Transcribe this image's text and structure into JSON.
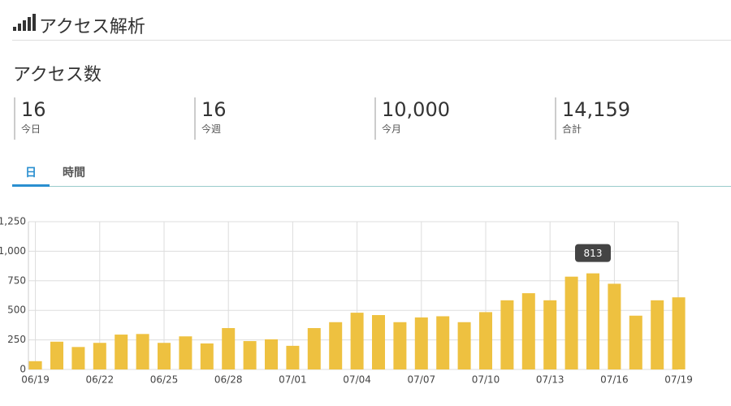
{
  "header": {
    "title": "アクセス解析"
  },
  "section": {
    "title": "アクセス数"
  },
  "stats": [
    {
      "value": "16",
      "label": "今日"
    },
    {
      "value": "16",
      "label": "今週"
    },
    {
      "value": "10,000",
      "label": "今月"
    },
    {
      "value": "14,159",
      "label": "合計"
    }
  ],
  "tabs": [
    "日",
    "時間"
  ],
  "chart_data": {
    "type": "bar",
    "color": "#eec140",
    "grid": true,
    "categories": [
      "06/19",
      null,
      null,
      "06/22",
      null,
      null,
      "06/25",
      null,
      null,
      "06/28",
      null,
      null,
      "07/01",
      null,
      null,
      "07/04",
      null,
      null,
      "07/07",
      null,
      null,
      "07/10",
      null,
      null,
      "07/13",
      null,
      null,
      "07/16",
      null,
      null,
      "07/19"
    ],
    "values": [
      70,
      235,
      190,
      225,
      295,
      300,
      225,
      280,
      220,
      350,
      240,
      255,
      200,
      350,
      400,
      480,
      460,
      400,
      440,
      450,
      400,
      485,
      585,
      645,
      585,
      785,
      813,
      725,
      455,
      585,
      610
    ],
    "ylim": [
      0,
      1250
    ],
    "yticks": [
      0,
      250,
      500,
      750,
      {
        "value": 1000,
        "label": "1,000"
      },
      {
        "value": 1250,
        "label": "1,250"
      }
    ]
  }
}
